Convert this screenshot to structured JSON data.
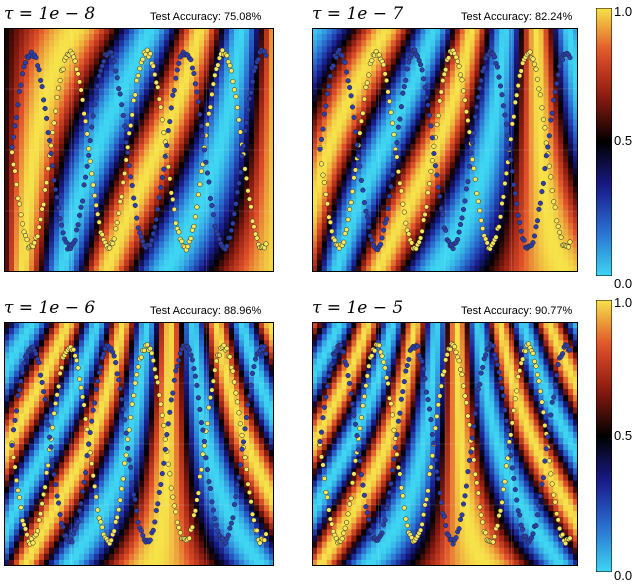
{
  "chart_data": [
    {
      "type": "heatmap",
      "title": "τ = 1e − 8",
      "accuracy_label": "Test Accuracy: 75.08%",
      "colorbar": {
        "range": [
          0.0,
          1.0
        ],
        "ticks": [
          "1.0",
          "0.5",
          "0.0"
        ]
      },
      "series": [
        {
          "color": "#f5e65a",
          "pattern": "yellow-sine"
        },
        {
          "color": "#2b3fb0",
          "pattern": "blue-sine"
        }
      ]
    },
    {
      "type": "heatmap",
      "title": "τ = 1e − 7",
      "accuracy_label": "Test Accuracy: 82.24%",
      "colorbar": {
        "range": [
          0.0,
          1.0
        ],
        "ticks": [
          "1.0",
          "0.5",
          "0.0"
        ]
      },
      "series": [
        {
          "color": "#f5e65a",
          "pattern": "yellow-sine"
        },
        {
          "color": "#2b3fb0",
          "pattern": "blue-sine"
        }
      ]
    },
    {
      "type": "heatmap",
      "title": "τ = 1e − 6",
      "accuracy_label": "Test Accuracy: 88.96%",
      "colorbar": {
        "range": [
          0.0,
          1.0
        ],
        "ticks": [
          "1.0",
          "0.5",
          "0.0"
        ]
      },
      "series": [
        {
          "color": "#f5e65a",
          "pattern": "yellow-sine"
        },
        {
          "color": "#2b3fb0",
          "pattern": "blue-sine"
        }
      ]
    },
    {
      "type": "heatmap",
      "title": "τ = 1e − 5",
      "accuracy_label": "Test Accuracy: 90.77%",
      "colorbar": {
        "range": [
          0.0,
          1.0
        ],
        "ticks": [
          "1.0",
          "0.5",
          "0.0"
        ]
      },
      "series": [
        {
          "color": "#f5e65a",
          "pattern": "yellow-sine"
        },
        {
          "color": "#2b3fb0",
          "pattern": "blue-sine"
        }
      ]
    }
  ],
  "colormap": [
    "#3fd6f2",
    "#2a6fd0",
    "#1a1a8a",
    "#000000",
    "#8a1a10",
    "#e0502a",
    "#f6e34a"
  ]
}
